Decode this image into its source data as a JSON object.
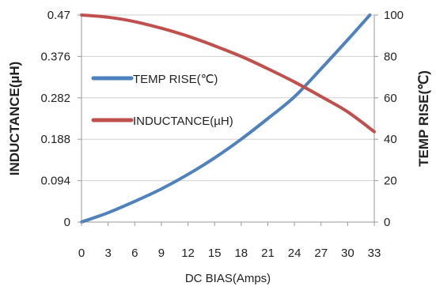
{
  "chart_data": {
    "type": "line",
    "xlabel": "DC  BIAS(Amps)",
    "ylabel_left": "INDUCTANCE(µH)",
    "ylabel_right": "TEMP RISE(℃)",
    "x_ticks": [
      "0",
      "3",
      "6",
      "9",
      "12",
      "15",
      "18",
      "21",
      "24",
      "27",
      "30",
      "33"
    ],
    "y_left_ticks": [
      "0",
      "0.094",
      "0.188",
      "0.282",
      "0.376",
      "0.47"
    ],
    "y_right_ticks": [
      "0",
      "20",
      "40",
      "60",
      "80",
      "100"
    ],
    "xlim": [
      0,
      33
    ],
    "ylim_left": [
      0,
      0.47
    ],
    "ylim_right": [
      0,
      100
    ],
    "grid": "horizontal",
    "legend_position": "center-left",
    "series": [
      {
        "name": "TEMP RISE(℃)",
        "axis": "right",
        "color": "#4f81bd",
        "x": [
          0,
          3,
          6,
          9,
          12,
          15,
          18,
          21,
          24,
          27,
          30,
          32.5
        ],
        "values": [
          0,
          4.5,
          10,
          16,
          23,
          31,
          40,
          50,
          60.5,
          74,
          88,
          100
        ]
      },
      {
        "name": "INDUCTANCE(µH)",
        "axis": "left",
        "color": "#c0504d",
        "x": [
          0,
          3,
          6,
          9,
          12,
          15,
          18,
          21,
          24,
          27,
          30,
          33
        ],
        "values": [
          0.47,
          0.465,
          0.455,
          0.44,
          0.422,
          0.4,
          0.376,
          0.348,
          0.318,
          0.285,
          0.25,
          0.205
        ]
      }
    ]
  }
}
